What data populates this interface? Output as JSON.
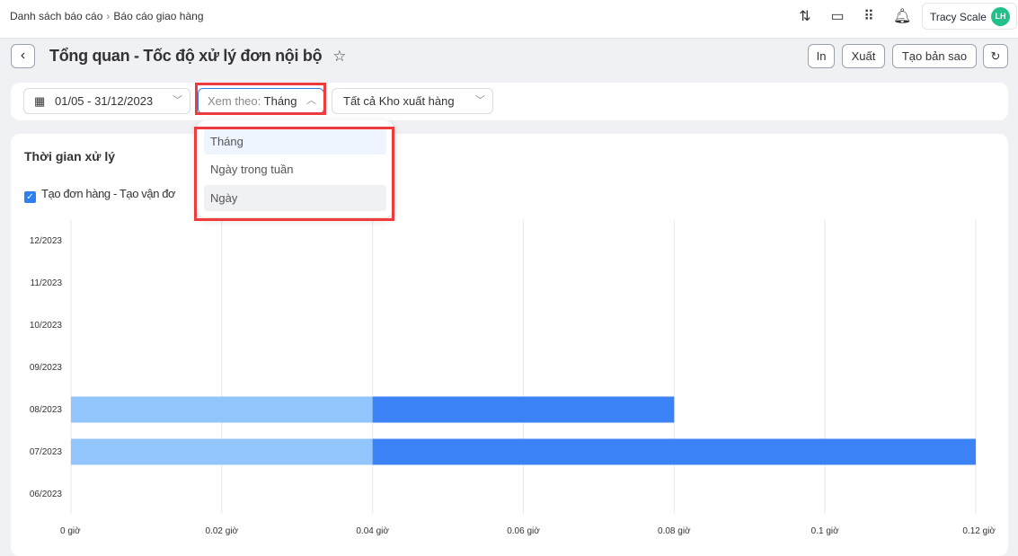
{
  "breadcrumb": {
    "items": [
      "Danh sách báo cáo",
      "Báo cáo giao hàng"
    ]
  },
  "header": {
    "icons": [
      "sync-icon",
      "feedback-icon",
      "apps-grid-icon",
      "bell-icon"
    ],
    "user_name": "Tracy Scale",
    "avatar_initials": "LH"
  },
  "page": {
    "title": "Tổng quan - Tốc độ xử lý đơn nội bộ",
    "actions": {
      "print": "In",
      "export": "Xuất",
      "duplicate": "Tạo bản sao"
    }
  },
  "filters": {
    "date_range": "01/05 - 31/12/2023",
    "view_by_label": "Xem theo:",
    "view_by_value": "Tháng",
    "warehouse": "Tất cả Kho xuất hàng"
  },
  "dropdown": {
    "options": [
      "Tháng",
      "Ngày trong tuần",
      "Ngày"
    ],
    "selected": "Tháng"
  },
  "card": {
    "title": "Thời gian xử lý",
    "legend": "Tạo đơn hàng - Tạo vận đơ"
  },
  "colors": {
    "accent": "#2f7ff0",
    "bar_light": "#93c5fd",
    "bar_dark": "#3b82f6",
    "highlight": "#ef3b3b",
    "avatar": "#22c08a"
  },
  "chart_data": {
    "type": "bar",
    "orientation": "horizontal",
    "stacked": true,
    "categories": [
      "12/2023",
      "11/2023",
      "10/2023",
      "09/2023",
      "08/2023",
      "07/2023",
      "06/2023"
    ],
    "series": [
      {
        "values": [
          0,
          0,
          0,
          0,
          0.04,
          0.04,
          0
        ]
      },
      {
        "values": [
          0,
          0,
          0,
          0,
          0.04,
          0.08,
          0
        ]
      }
    ],
    "xticks": [
      "0 giờ",
      "0.02 giờ",
      "0.04 giờ",
      "0.06 giờ",
      "0.08 giờ",
      "0.1 giờ",
      "0.12 giờ"
    ],
    "xlim": [
      0,
      0.12
    ],
    "grid": "vertical"
  }
}
